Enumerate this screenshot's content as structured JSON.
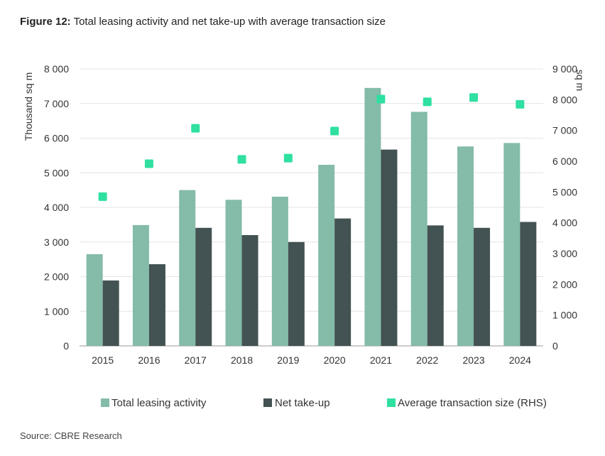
{
  "figure": {
    "label": "Figure 12:",
    "title": "Total leasing activity and net take-up with average transaction size"
  },
  "source": "Source: CBRE Research",
  "colors": {
    "total_leasing": "#84bba9",
    "net_takeup": "#435252",
    "avg_transaction": "#2fe0a0",
    "grid": "#e4e4e4",
    "axis": "#999999"
  },
  "chart_data": {
    "type": "bar",
    "categories": [
      "2015",
      "2016",
      "2017",
      "2018",
      "2019",
      "2020",
      "2021",
      "2022",
      "2023",
      "2024"
    ],
    "series": [
      {
        "name": "Total leasing activity",
        "type": "bar",
        "axis": "left",
        "values": [
          2650,
          3490,
          4500,
          4220,
          4310,
          5230,
          7450,
          6760,
          5760,
          5860
        ]
      },
      {
        "name": "Net take-up",
        "type": "bar",
        "axis": "left",
        "values": [
          1890,
          2360,
          3410,
          3200,
          3000,
          3680,
          5670,
          3480,
          3410,
          3580
        ]
      },
      {
        "name": "Average transaction size (RHS)",
        "type": "scatter",
        "axis": "right",
        "values": [
          4850,
          5920,
          7070,
          6060,
          6100,
          6980,
          8020,
          7930,
          8070,
          7850
        ]
      }
    ],
    "ylabel": "Thousand sq m",
    "y2label": "sq m",
    "ylim": [
      0,
      8000
    ],
    "y2lim": [
      0,
      9000
    ],
    "yticks": [
      "0",
      "1 000",
      "2 000",
      "3 000",
      "4 000",
      "5 000",
      "6 000",
      "7 000",
      "8 000"
    ],
    "y2ticks": [
      "0",
      "1 000",
      "2 000",
      "3 000",
      "4 000",
      "5 000",
      "6 000",
      "7 000",
      "8 000",
      "9 000"
    ],
    "grid": true,
    "legend_position": "bottom"
  }
}
